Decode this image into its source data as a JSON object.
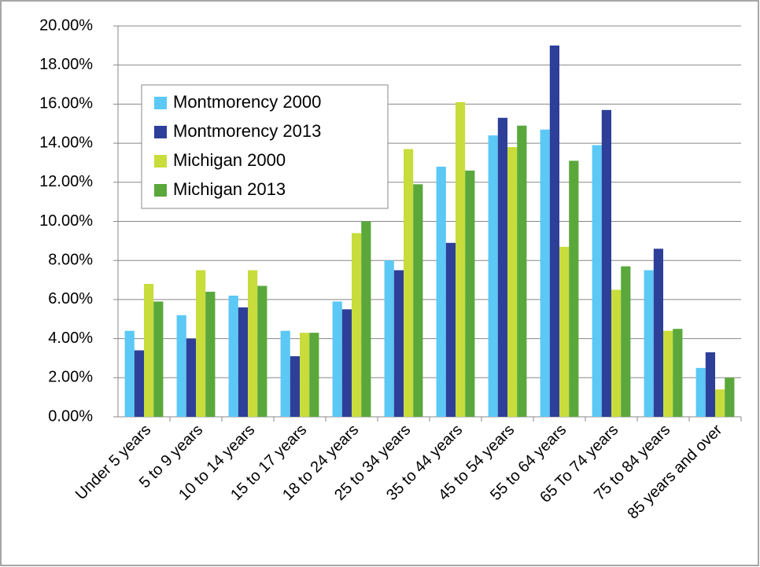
{
  "chart_data": {
    "type": "bar",
    "categories": [
      "Under 5 years",
      "5 to 9 years",
      "10 to 14 years",
      "15 to 17 years",
      "18 to 24 years",
      "25 to 34 years",
      "35 to 44 years",
      "45 to 54 years",
      "55 to 64 years",
      "65 To 74 years",
      "75 to 84 years",
      "85 years and over"
    ],
    "series": [
      {
        "name": "Montmorency 2000",
        "color": "#5bc8f5",
        "values": [
          4.4,
          5.2,
          6.2,
          4.4,
          5.9,
          8.0,
          12.8,
          14.4,
          14.7,
          13.9,
          7.5,
          2.5
        ]
      },
      {
        "name": "Montmorency 2013",
        "color": "#2e3f99",
        "values": [
          3.4,
          4.0,
          5.6,
          3.1,
          5.5,
          7.5,
          8.9,
          15.3,
          19.0,
          15.7,
          8.6,
          3.3
        ]
      },
      {
        "name": "Michigan 2000",
        "color": "#c8dc3c",
        "values": [
          6.8,
          7.5,
          7.5,
          4.3,
          9.4,
          13.7,
          16.1,
          13.8,
          8.7,
          6.5,
          4.4,
          1.4
        ]
      },
      {
        "name": "Michigan 2013",
        "color": "#5aa83c",
        "values": [
          5.9,
          6.4,
          6.7,
          4.3,
          10.0,
          11.9,
          12.6,
          14.9,
          13.1,
          7.7,
          4.5,
          2.0
        ]
      }
    ],
    "ylim": [
      0,
      20
    ],
    "yticks": [
      {
        "value": 0,
        "label": "0.00%"
      },
      {
        "value": 2,
        "label": "2.00%"
      },
      {
        "value": 4,
        "label": "4.00%"
      },
      {
        "value": 6,
        "label": "6.00%"
      },
      {
        "value": 8,
        "label": "8.00%"
      },
      {
        "value": 10,
        "label": "10.00%"
      },
      {
        "value": 12,
        "label": "12.00%"
      },
      {
        "value": 14,
        "label": "14.00%"
      },
      {
        "value": 16,
        "label": "16.00%"
      },
      {
        "value": 18,
        "label": "18.00%"
      },
      {
        "value": 20,
        "label": "20.00%"
      }
    ],
    "grid": true,
    "legend": "upper left"
  }
}
